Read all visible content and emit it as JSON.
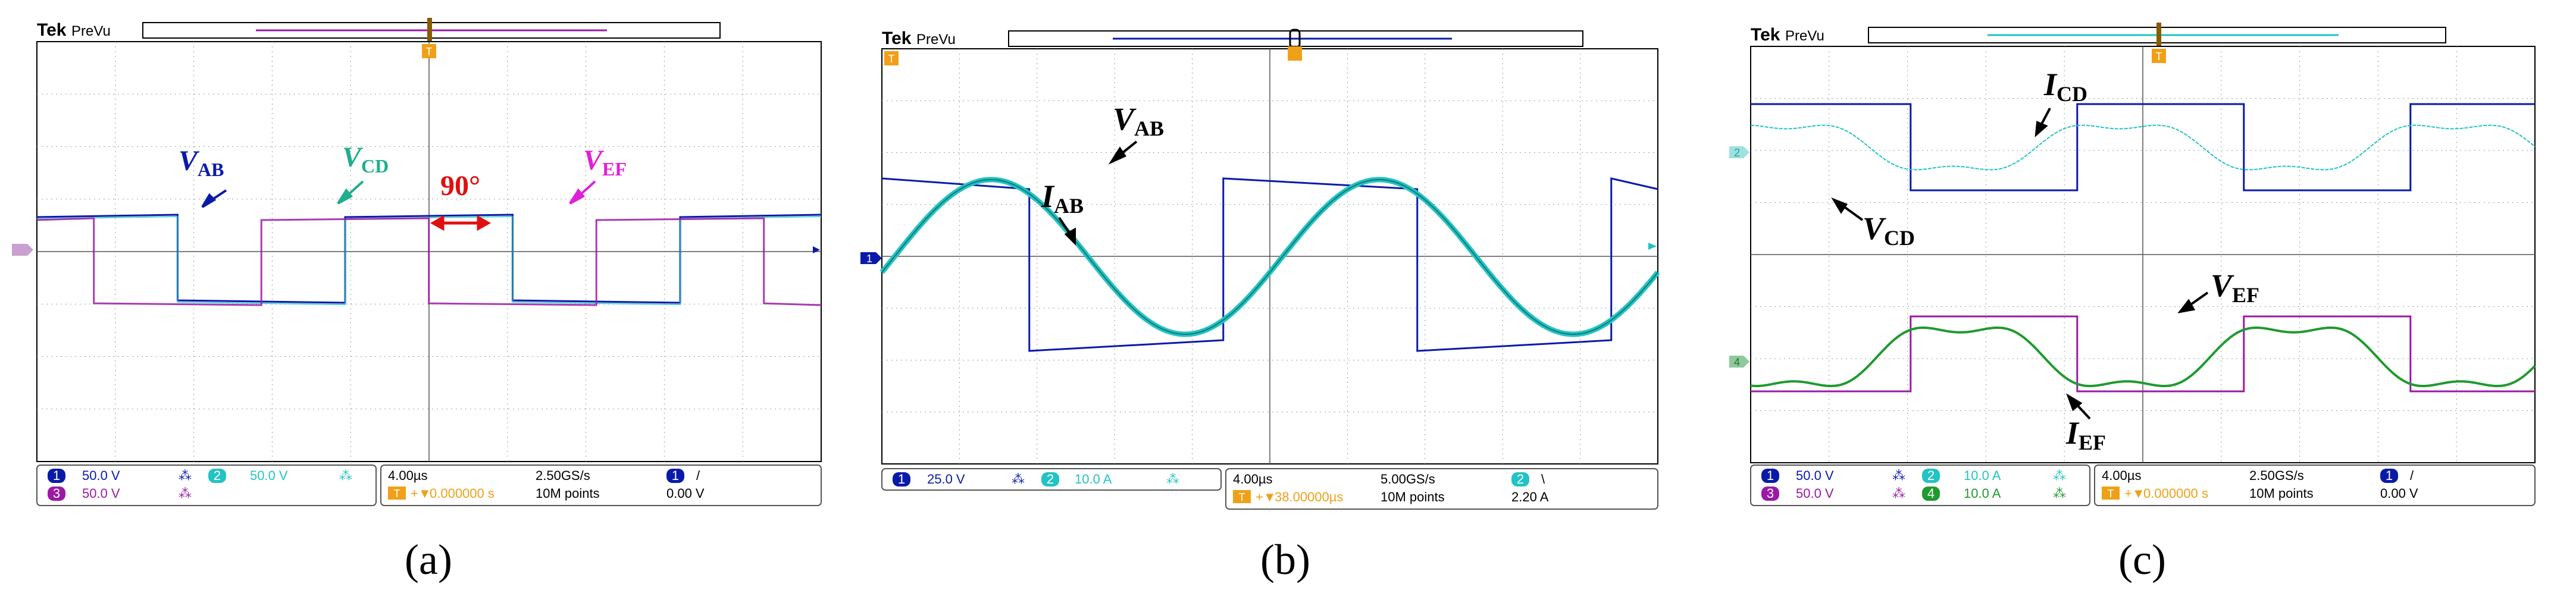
{
  "figure_labels": [
    "(a)",
    "(b)",
    "(c)"
  ],
  "colors": {
    "ch1": "#0a1aa8",
    "ch2": "#22c3c3",
    "ch3": "#9a1aa6",
    "ch4": "#1f9a2e",
    "grid": "#9a9a9a",
    "trigger": "#f0a018",
    "annotation_red": "#e01010",
    "annot_vcd_a": "#1fae8e",
    "annot_vef_a": "#e020d8"
  },
  "chart_data": [
    {
      "type": "line",
      "brand": "Tek",
      "mode": "PreVu",
      "divisions": {
        "x": 10,
        "y": 8
      },
      "grid": true,
      "series": [
        {
          "name": "V_AB",
          "channel": 1,
          "shape": "square",
          "phase_deg": 0,
          "volts_per_div": "50.0 V"
        },
        {
          "name": "V_CD",
          "channel": 2,
          "shape": "square",
          "phase_deg": 0,
          "volts_per_div": "50.0 V"
        },
        {
          "name": "V_EF",
          "channel": 3,
          "shape": "square",
          "phase_deg": 90,
          "volts_per_div": "50.0 V"
        }
      ],
      "annotations": {
        "vab": {
          "main": "V",
          "sub": "AB"
        },
        "vcd": {
          "main": "V",
          "sub": "CD"
        },
        "vef": {
          "main": "V",
          "sub": "EF"
        },
        "phase": "90°"
      },
      "status": {
        "ch1": "50.0 V",
        "ch2": "50.0 V",
        "ch3": "50.0 V",
        "timebase": "4.00µs",
        "sample_rate": "2.50GS/s",
        "trig_delay": "0.000000 s",
        "record": "10M points",
        "trig_level": "0.00 V",
        "trig_slope": "/"
      }
    },
    {
      "type": "line",
      "brand": "Tek",
      "mode": "PreVu",
      "divisions": {
        "x": 10,
        "y": 8
      },
      "grid": true,
      "series": [
        {
          "name": "V_AB",
          "channel": 1,
          "shape": "square",
          "scale": "25.0 V"
        },
        {
          "name": "I_AB",
          "channel": 2,
          "shape": "sine",
          "scale": "10.0 A"
        }
      ],
      "annotations": {
        "vab": {
          "main": "V",
          "sub": "AB"
        },
        "iab": {
          "main": "I",
          "sub": "AB"
        }
      },
      "status": {
        "ch1": "25.0 V",
        "ch2": "10.0 A",
        "timebase": "4.00µs",
        "sample_rate": "5.00GS/s",
        "trig_delay": "38.00000µs",
        "record": "10M points",
        "trig_level": "2.20 A",
        "trig_slope": "\\"
      }
    },
    {
      "type": "line",
      "brand": "Tek",
      "mode": "PreVu",
      "divisions": {
        "x": 10,
        "y": 8
      },
      "grid": true,
      "series": [
        {
          "name": "V_CD",
          "channel": 1,
          "shape": "square",
          "scale": "50.0 V"
        },
        {
          "name": "I_CD",
          "channel": 2,
          "shape": "sine",
          "scale": "10.0 A"
        },
        {
          "name": "V_EF",
          "channel": 3,
          "shape": "square",
          "scale": "50.0 V"
        },
        {
          "name": "I_EF",
          "channel": 4,
          "shape": "sine",
          "scale": "10.0 A"
        }
      ],
      "annotations": {
        "icd": {
          "main": "I",
          "sub": "CD"
        },
        "vcd": {
          "main": "V",
          "sub": "CD"
        },
        "vef": {
          "main": "V",
          "sub": "EF"
        },
        "ief": {
          "main": "I",
          "sub": "EF"
        }
      },
      "status": {
        "ch1": "50.0 V",
        "ch2": "10.0 A",
        "ch3": "50.0 V",
        "ch4": "10.0 A",
        "timebase": "4.00µs",
        "sample_rate": "2.50GS/s",
        "trig_delay": "0.000000 s",
        "record": "10M points",
        "trig_level": "0.00 V",
        "trig_slope": "/"
      }
    }
  ]
}
